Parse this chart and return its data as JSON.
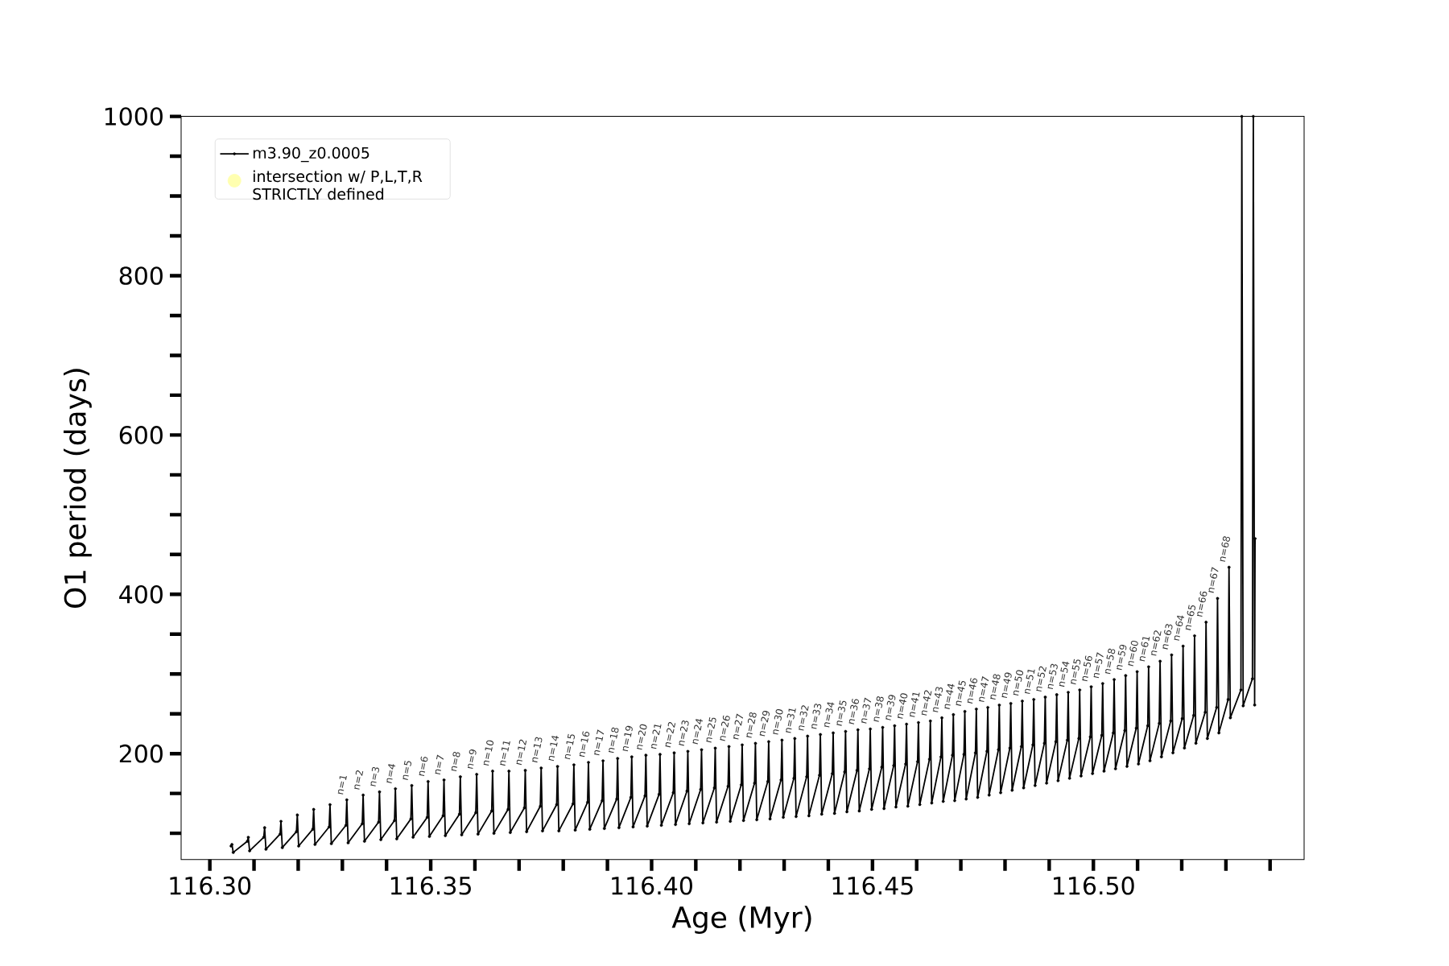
{
  "chart_data": {
    "type": "line",
    "xlabel": "Age (Myr)",
    "ylabel": "O1 period (days)",
    "xlim": [
      116.2935,
      116.5477
    ],
    "ylim": [
      67,
      1000
    ],
    "xticks": [
      {
        "value": 116.3,
        "label": "116.30"
      },
      {
        "value": 116.31,
        "label": null
      },
      {
        "value": 116.32,
        "label": null
      },
      {
        "value": 116.33,
        "label": null
      },
      {
        "value": 116.34,
        "label": null
      },
      {
        "value": 116.35,
        "label": "116.35"
      },
      {
        "value": 116.36,
        "label": null
      },
      {
        "value": 116.37,
        "label": null
      },
      {
        "value": 116.38,
        "label": null
      },
      {
        "value": 116.39,
        "label": null
      },
      {
        "value": 116.4,
        "label": "116.40"
      },
      {
        "value": 116.41,
        "label": null
      },
      {
        "value": 116.42,
        "label": null
      },
      {
        "value": 116.43,
        "label": null
      },
      {
        "value": 116.44,
        "label": null
      },
      {
        "value": 116.45,
        "label": "116.45"
      },
      {
        "value": 116.46,
        "label": null
      },
      {
        "value": 116.47,
        "label": null
      },
      {
        "value": 116.48,
        "label": null
      },
      {
        "value": 116.49,
        "label": null
      },
      {
        "value": 116.5,
        "label": "116.50"
      },
      {
        "value": 116.51,
        "label": null
      },
      {
        "value": 116.52,
        "label": null
      },
      {
        "value": 116.53,
        "label": null
      },
      {
        "value": 116.54,
        "label": null
      }
    ],
    "yticks": [
      {
        "value": 100,
        "label": null
      },
      {
        "value": 150,
        "label": null
      },
      200,
      {
        "value": 250,
        "label": null
      },
      {
        "value": 300,
        "label": null
      },
      {
        "value": 350,
        "label": null
      },
      400,
      {
        "value": 450,
        "label": null
      },
      {
        "value": 500,
        "label": null
      },
      {
        "value": 550,
        "label": null
      },
      600,
      {
        "value": 650,
        "label": null
      },
      {
        "value": 700,
        "label": null
      },
      {
        "value": 750,
        "label": null
      },
      800,
      {
        "value": 850,
        "label": null
      },
      {
        "value": 900,
        "label": null
      },
      {
        "value": 950,
        "label": null
      },
      1000
    ],
    "legend": "top left",
    "grid": false,
    "series": [
      {
        "name": "m3.90_z0.0005",
        "color": "#000000",
        "marker": "circle",
        "line_style": "solid",
        "x": [
          116.3048,
          116.305,
          116.3053,
          116.3085,
          116.3087,
          116.309,
          116.3122,
          116.3124,
          116.3127,
          116.3159,
          116.3161,
          116.3164,
          116.3196,
          116.3198,
          116.3201,
          116.3233,
          116.3235,
          116.3238,
          116.327,
          116.3272,
          116.3275,
          116.3308,
          116.331,
          116.3313,
          116.3345,
          116.3347,
          116.335,
          116.3382,
          116.3384,
          116.3387,
          116.3418,
          116.342,
          116.3423,
          116.3455,
          116.3457,
          116.346,
          116.3492,
          116.3494,
          116.3497,
          116.3528,
          116.353,
          116.3533,
          116.3565,
          116.3567,
          116.357,
          116.3602,
          116.3604,
          116.3607,
          116.3638,
          116.364,
          116.3643,
          116.3675,
          116.3677,
          116.368,
          116.3712,
          116.3714,
          116.3717,
          116.3748,
          116.375,
          116.3753,
          116.3785,
          116.3787,
          116.379,
          116.3822,
          116.3824,
          116.3827,
          116.3855,
          116.3857,
          116.386,
          116.3888,
          116.389,
          116.3893,
          116.3921,
          116.3923,
          116.3926,
          116.3953,
          116.3955,
          116.3958,
          116.3985,
          116.3987,
          116.399,
          116.4017,
          116.4019,
          116.4022,
          116.4049,
          116.4051,
          116.4054,
          116.408,
          116.4082,
          116.4085,
          116.4111,
          116.4113,
          116.4116,
          116.4142,
          116.4144,
          116.4147,
          116.4173,
          116.4175,
          116.4178,
          116.4203,
          116.4205,
          116.4208,
          116.4233,
          116.4235,
          116.4238,
          116.4263,
          116.4265,
          116.4268,
          116.4293,
          116.4295,
          116.4298,
          116.4322,
          116.4324,
          116.4327,
          116.4351,
          116.4353,
          116.4356,
          116.438,
          116.4382,
          116.4385,
          116.4409,
          116.4411,
          116.4414,
          116.4437,
          116.4439,
          116.4442,
          116.4465,
          116.4467,
          116.447,
          116.4493,
          116.4495,
          116.4498,
          116.4521,
          116.4523,
          116.4526,
          116.4548,
          116.455,
          116.4553,
          116.4575,
          116.4577,
          116.458,
          116.4602,
          116.4604,
          116.4607,
          116.4629,
          116.4631,
          116.4634,
          116.4655,
          116.4657,
          116.466,
          116.4681,
          116.4683,
          116.4686,
          116.4707,
          116.4709,
          116.4712,
          116.4733,
          116.4735,
          116.4738,
          116.4759,
          116.4761,
          116.4764,
          116.4785,
          116.4787,
          116.479,
          116.4811,
          116.4813,
          116.4816,
          116.4837,
          116.4839,
          116.4842,
          116.4863,
          116.4865,
          116.4868,
          116.4889,
          116.4891,
          116.4894,
          116.4915,
          116.4917,
          116.492,
          116.4941,
          116.4943,
          116.4946,
          116.4967,
          116.4969,
          116.4972,
          116.4993,
          116.4995,
          116.4998,
          116.5019,
          116.5021,
          116.5024,
          116.5045,
          116.5047,
          116.505,
          116.5071,
          116.5073,
          116.5076,
          116.5097,
          116.5099,
          116.5102,
          116.5123,
          116.5125,
          116.5128,
          116.5149,
          116.5151,
          116.5154,
          116.5175,
          116.5177,
          116.518,
          116.5201,
          116.5203,
          116.5206,
          116.5227,
          116.5229,
          116.5232,
          116.5253,
          116.5255,
          116.5258,
          116.5279,
          116.5281,
          116.5284,
          116.5305,
          116.5307,
          116.531,
          116.5334,
          116.5336,
          116.5339,
          116.536,
          116.5362,
          116.5365,
          116.5366
        ],
        "values": [
          84,
          86,
          76,
          90,
          95,
          78,
          95,
          107,
          80,
          99,
          115,
          82,
          102,
          123,
          84,
          105,
          130,
          86,
          108,
          136,
          87,
          110,
          142,
          88,
          112,
          148,
          90,
          114,
          152,
          92,
          116,
          156,
          93,
          118,
          160,
          95,
          120,
          165,
          96,
          122,
          167,
          97,
          124,
          171,
          98,
          126,
          174,
          99,
          128,
          178,
          100,
          130,
          178,
          101,
          132,
          179,
          102,
          134,
          182,
          103,
          136,
          184,
          103,
          137,
          186,
          104,
          139,
          189,
          105,
          141,
          191,
          106,
          143,
          194,
          107,
          145,
          196,
          108,
          147,
          198,
          109,
          149,
          199,
          110,
          151,
          201,
          111,
          153,
          203,
          112,
          155,
          205,
          113,
          157,
          207,
          114,
          159,
          209,
          115,
          161,
          211,
          116,
          163,
          213,
          117,
          165,
          215,
          118,
          167,
          217,
          120,
          169,
          219,
          121,
          171,
          222,
          122,
          173,
          224,
          124,
          175,
          226,
          125,
          177,
          228,
          127,
          179,
          230,
          128,
          181,
          231,
          130,
          183,
          233,
          131,
          185,
          235,
          133,
          187,
          237,
          134,
          190,
          239,
          136,
          193,
          241,
          138,
          196,
          245,
          140,
          198,
          249,
          141,
          199,
          253,
          143,
          201,
          256,
          145,
          203,
          258,
          148,
          205,
          261,
          151,
          207,
          263,
          154,
          209,
          266,
          157,
          211,
          268,
          160,
          213,
          271,
          163,
          215,
          274,
          166,
          217,
          277,
          169,
          219,
          280,
          172,
          221,
          284,
          175,
          223,
          288,
          178,
          226,
          293,
          181,
          229,
          298,
          184,
          232,
          303,
          187,
          235,
          309,
          191,
          238,
          316,
          196,
          241,
          324,
          201,
          244,
          335,
          207,
          248,
          348,
          213,
          252,
          365,
          219,
          258,
          395,
          226,
          268,
          434,
          245,
          280,
          1000,
          260,
          294,
          1000,
          261,
          470
        ]
      },
      {
        "name": "intersection w/ P,L,T,R STRICTLY defined",
        "type": "scatter",
        "color": "#ffffb0",
        "marker": "circle"
      }
    ],
    "annotations": [
      {
        "text": "n=1",
        "x": 116.331,
        "y": 142
      },
      {
        "text": "n=2",
        "x": 116.3347,
        "y": 148
      },
      {
        "text": "n=3",
        "x": 116.3384,
        "y": 152
      },
      {
        "text": "n=4",
        "x": 116.342,
        "y": 156
      },
      {
        "text": "n=5",
        "x": 116.3457,
        "y": 160
      },
      {
        "text": "n=6",
        "x": 116.3494,
        "y": 165
      },
      {
        "text": "n=7",
        "x": 116.353,
        "y": 167
      },
      {
        "text": "n=8",
        "x": 116.3567,
        "y": 171
      },
      {
        "text": "n=9",
        "x": 116.3604,
        "y": 174
      },
      {
        "text": "n=10",
        "x": 116.364,
        "y": 178
      },
      {
        "text": "n=11",
        "x": 116.3677,
        "y": 178
      },
      {
        "text": "n=12",
        "x": 116.3714,
        "y": 179
      },
      {
        "text": "n=13",
        "x": 116.375,
        "y": 182
      },
      {
        "text": "n=14",
        "x": 116.3787,
        "y": 184
      },
      {
        "text": "n=15",
        "x": 116.3824,
        "y": 186
      },
      {
        "text": "n=16",
        "x": 116.3857,
        "y": 189
      },
      {
        "text": "n=17",
        "x": 116.389,
        "y": 191
      },
      {
        "text": "n=18",
        "x": 116.3923,
        "y": 194
      },
      {
        "text": "n=19",
        "x": 116.3955,
        "y": 196
      },
      {
        "text": "n=20",
        "x": 116.3987,
        "y": 198
      },
      {
        "text": "n=21",
        "x": 116.4019,
        "y": 199
      },
      {
        "text": "n=22",
        "x": 116.4051,
        "y": 201
      },
      {
        "text": "n=23",
        "x": 116.4082,
        "y": 203
      },
      {
        "text": "n=24",
        "x": 116.4113,
        "y": 205
      },
      {
        "text": "n=25",
        "x": 116.4144,
        "y": 207
      },
      {
        "text": "n=26",
        "x": 116.4175,
        "y": 209
      },
      {
        "text": "n=27",
        "x": 116.4205,
        "y": 211
      },
      {
        "text": "n=28",
        "x": 116.4235,
        "y": 213
      },
      {
        "text": "n=29",
        "x": 116.4265,
        "y": 215
      },
      {
        "text": "n=30",
        "x": 116.4295,
        "y": 217
      },
      {
        "text": "n=31",
        "x": 116.4324,
        "y": 219
      },
      {
        "text": "n=32",
        "x": 116.4353,
        "y": 222
      },
      {
        "text": "n=33",
        "x": 116.4382,
        "y": 224
      },
      {
        "text": "n=34",
        "x": 116.4411,
        "y": 226
      },
      {
        "text": "n=35",
        "x": 116.4439,
        "y": 228
      },
      {
        "text": "n=36",
        "x": 116.4467,
        "y": 230
      },
      {
        "text": "n=37",
        "x": 116.4495,
        "y": 231
      },
      {
        "text": "n=38",
        "x": 116.4523,
        "y": 233
      },
      {
        "text": "n=39",
        "x": 116.455,
        "y": 235
      },
      {
        "text": "n=40",
        "x": 116.4577,
        "y": 237
      },
      {
        "text": "n=41",
        "x": 116.4604,
        "y": 239
      },
      {
        "text": "n=42",
        "x": 116.4631,
        "y": 241
      },
      {
        "text": "n=43",
        "x": 116.4657,
        "y": 245
      },
      {
        "text": "n=44",
        "x": 116.4683,
        "y": 249
      },
      {
        "text": "n=45",
        "x": 116.4709,
        "y": 253
      },
      {
        "text": "n=46",
        "x": 116.4735,
        "y": 256
      },
      {
        "text": "n=47",
        "x": 116.4761,
        "y": 258
      },
      {
        "text": "n=48",
        "x": 116.4787,
        "y": 261
      },
      {
        "text": "n=49",
        "x": 116.4813,
        "y": 263
      },
      {
        "text": "n=50",
        "x": 116.4839,
        "y": 266
      },
      {
        "text": "n=51",
        "x": 116.4865,
        "y": 268
      },
      {
        "text": "n=52",
        "x": 116.4891,
        "y": 271
      },
      {
        "text": "n=53",
        "x": 116.4917,
        "y": 274
      },
      {
        "text": "n=54",
        "x": 116.4943,
        "y": 277
      },
      {
        "text": "n=55",
        "x": 116.4969,
        "y": 280
      },
      {
        "text": "n=56",
        "x": 116.4995,
        "y": 284
      },
      {
        "text": "n=57",
        "x": 116.5021,
        "y": 288
      },
      {
        "text": "n=58",
        "x": 116.5047,
        "y": 293
      },
      {
        "text": "n=59",
        "x": 116.5073,
        "y": 298
      },
      {
        "text": "n=60",
        "x": 116.5099,
        "y": 303
      },
      {
        "text": "n=61",
        "x": 116.5125,
        "y": 309
      },
      {
        "text": "n=62",
        "x": 116.5151,
        "y": 316
      },
      {
        "text": "n=63",
        "x": 116.5177,
        "y": 324
      },
      {
        "text": "n=64",
        "x": 116.5203,
        "y": 335
      },
      {
        "text": "n=65",
        "x": 116.5229,
        "y": 348
      },
      {
        "text": "n=66",
        "x": 116.5255,
        "y": 365
      },
      {
        "text": "n=67",
        "x": 116.5281,
        "y": 395
      },
      {
        "text": "n=68",
        "x": 116.5307,
        "y": 434
      }
    ]
  }
}
